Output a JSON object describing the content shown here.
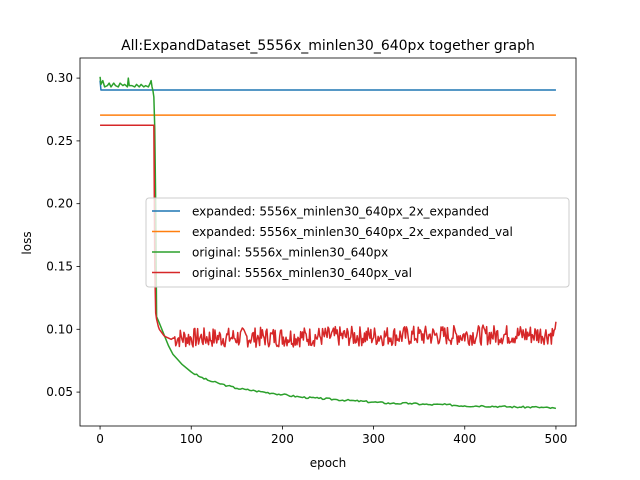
{
  "chart_data": {
    "type": "line",
    "title": "All:ExpandDataset_5556x_minlen30_640px together graph",
    "xlabel": "epoch",
    "ylabel": "loss",
    "xlim": [
      -22,
      522
    ],
    "ylim": [
      0.023,
      0.316
    ],
    "xticks": [
      0,
      100,
      200,
      300,
      400,
      500
    ],
    "yticks": [
      0.05,
      0.1,
      0.15,
      0.2,
      0.25,
      0.3
    ],
    "ytick_labels": [
      "0.05",
      "0.10",
      "0.15",
      "0.20",
      "0.25",
      "0.30"
    ],
    "grid": false,
    "legend_position": "center-right",
    "series": [
      {
        "name": "expanded: 5556x_minlen30_640px_2x_expanded",
        "color": "#1f77b4",
        "x": [
          0,
          1,
          500
        ],
        "y": [
          0.298,
          0.2905,
          0.2905
        ]
      },
      {
        "name": "expanded: 5556x_minlen30_640px_2x_expanded_val",
        "color": "#ff7f0e",
        "x": [
          0,
          500
        ],
        "y": [
          0.2705,
          0.2705
        ]
      },
      {
        "name": "original: 5556x_minlen30_640px",
        "color": "#2ca02c",
        "x": [
          0,
          1,
          3,
          5,
          8,
          10,
          12,
          15,
          17,
          20,
          22,
          25,
          27,
          30,
          31,
          32,
          35,
          38,
          40,
          43,
          45,
          48,
          50,
          53,
          55,
          56,
          57,
          58,
          59,
          60,
          61,
          62,
          65,
          70,
          75,
          80,
          85,
          90,
          100,
          110,
          120,
          130,
          140,
          150,
          160,
          170,
          180,
          190,
          200,
          220,
          240,
          260,
          280,
          300,
          320,
          340,
          360,
          380,
          400,
          420,
          440,
          460,
          480,
          500
        ],
        "y": [
          0.301,
          0.295,
          0.298,
          0.293,
          0.294,
          0.296,
          0.293,
          0.296,
          0.294,
          0.293,
          0.296,
          0.294,
          0.295,
          0.293,
          0.3,
          0.294,
          0.294,
          0.293,
          0.295,
          0.293,
          0.295,
          0.293,
          0.294,
          0.293,
          0.296,
          0.298,
          0.293,
          0.29,
          0.285,
          0.26,
          0.2,
          0.11,
          0.105,
          0.096,
          0.087,
          0.08,
          0.076,
          0.072,
          0.066,
          0.062,
          0.059,
          0.057,
          0.055,
          0.053,
          0.052,
          0.051,
          0.05,
          0.049,
          0.048,
          0.046,
          0.045,
          0.044,
          0.043,
          0.042,
          0.041,
          0.041,
          0.04,
          0.04,
          0.039,
          0.039,
          0.0385,
          0.038,
          0.038,
          0.037
        ]
      },
      {
        "name": "original: 5556x_minlen30_640px_val",
        "color": "#d62728",
        "x": [
          0,
          55,
          58,
          59,
          60,
          61,
          62,
          63,
          64,
          65,
          68,
          70,
          72,
          75,
          78,
          80,
          500
        ],
        "y": [
          0.2625,
          0.2625,
          0.2625,
          0.2625,
          0.15,
          0.113,
          0.108,
          0.105,
          0.102,
          0.1,
          0.097,
          0.095,
          0.094,
          0.093,
          0.092,
          0.093,
          0.096
        ]
      }
    ]
  }
}
